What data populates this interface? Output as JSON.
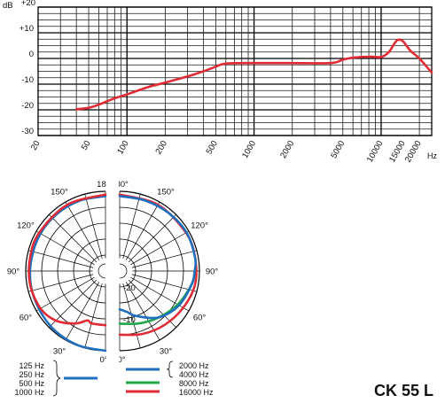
{
  "chart_data": [
    {
      "type": "line",
      "title": "",
      "xscale": "log",
      "x_ticks": [
        20,
        50,
        100,
        200,
        500,
        1000,
        2000,
        5000,
        10000,
        15000,
        20000
      ],
      "x_tick_labels": [
        "20",
        "50",
        "100",
        "200",
        "500",
        "1000",
        "2000",
        "5000",
        "10000",
        "15000",
        "20000"
      ],
      "xlabel": "Hz",
      "ylabel": "dB",
      "y_ticks": [
        20,
        10,
        0,
        -10,
        -20,
        -30
      ],
      "y_tick_labels": [
        "+20",
        "+10",
        "0",
        "-10",
        "-20",
        "-30"
      ],
      "ylim": [
        -30,
        20
      ],
      "xlim": [
        20,
        25000
      ],
      "grid": true,
      "series": [
        {
          "color": "#e02b35",
          "x": [
            40,
            50,
            60,
            80,
            100,
            150,
            200,
            300,
            400,
            500,
            600,
            1000,
            2000,
            4000,
            5000,
            6000,
            8000,
            10000,
            11500,
            13000,
            14000,
            15000,
            17000,
            20000,
            25000
          ],
          "y": [
            -19.8,
            -19.2,
            -18,
            -15.5,
            -14,
            -11,
            -9.4,
            -7,
            -5,
            -3.2,
            -2,
            -1.8,
            -1.8,
            -1.8,
            -0.5,
            0.3,
            0.7,
            0.6,
            2.5,
            6.5,
            7.3,
            6.5,
            3,
            0,
            -5.5
          ]
        }
      ]
    },
    {
      "type": "polar",
      "title": "",
      "angle_labels": [
        "0°",
        "30°",
        "60°",
        "90°",
        "120°",
        "150°",
        "180°"
      ],
      "radial_labels": [
        "-10",
        "-20"
      ],
      "rlim": [
        -25,
        0
      ],
      "legend": "bottom",
      "legend_groups": [
        {
          "frequencies": [
            "125 Hz",
            "250 Hz",
            "500 Hz",
            "1000 Hz"
          ],
          "color": "#1f6fbf",
          "side": "left"
        },
        {
          "frequencies": [
            "2000 Hz",
            "4000 Hz"
          ],
          "color": "#1f6fbf",
          "side": "right"
        },
        {
          "frequencies": [
            "8000 Hz"
          ],
          "color": "#22a84a",
          "side": "right"
        },
        {
          "frequencies": [
            "16000 Hz"
          ],
          "color": "#e02b35",
          "side": "right"
        }
      ],
      "series": [
        {
          "color": "#1f6fbf",
          "side": "left",
          "angles_deg": [
            0,
            20,
            40,
            60,
            80,
            100,
            120,
            140,
            160,
            180
          ],
          "level_db": [
            0,
            -0.2,
            -0.5,
            -1,
            -1.2,
            -1.5,
            -1.5,
            -1.5,
            -1.5,
            -1.5
          ]
        },
        {
          "color": "#e02b35",
          "side": "left",
          "angles_deg": [
            0,
            15,
            20,
            30,
            45,
            60,
            80,
            100,
            120,
            150,
            180
          ],
          "level_db": [
            -8,
            -8,
            -8.5,
            -6,
            -3,
            -1.5,
            -1,
            -1,
            -1,
            -1,
            -1
          ]
        },
        {
          "color": "#e02b35",
          "side": "right",
          "angles_deg": [
            0,
            20,
            40,
            60,
            80,
            100,
            120,
            150,
            180
          ],
          "level_db": [
            -5,
            -4,
            -3,
            -2,
            -1,
            -1,
            -1,
            -1,
            -1
          ]
        },
        {
          "color": "#22a84a",
          "side": "right",
          "angles_deg": [
            0,
            20,
            40,
            60,
            80,
            90
          ],
          "level_db": [
            -8.5,
            -7.5,
            -6,
            -4,
            -2,
            -1.5
          ]
        },
        {
          "color": "#1f6fbf",
          "side": "right",
          "angles_deg": [
            0,
            10,
            20,
            40,
            60,
            80,
            90,
            100,
            120,
            140,
            160,
            180
          ],
          "level_db": [
            -13,
            -12,
            -10,
            -6,
            -3.5,
            -2,
            -1.5,
            -1,
            -0.8,
            -1.2,
            -1.5,
            -1.5
          ]
        }
      ]
    }
  ],
  "model_name": "CK 55 L"
}
